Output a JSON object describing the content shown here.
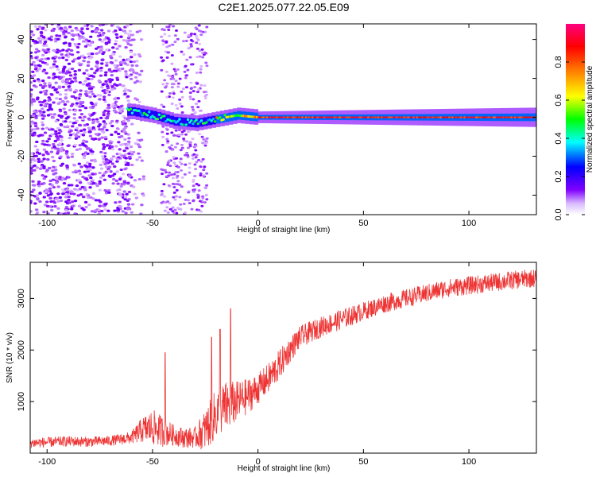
{
  "figure": {
    "title": "C2E1.2025.077.22.05.E09"
  },
  "chart_data": [
    {
      "type": "heatmap",
      "xlabel": "Height of straight line (km)",
      "ylabel": "Frequency (Hz)",
      "xlim": [
        -108,
        132
      ],
      "ylim": [
        -50,
        48
      ],
      "xticks": [
        -100,
        -50,
        0,
        50,
        100
      ],
      "yticks": [
        -40,
        -20,
        0,
        20,
        40
      ],
      "colorbar": {
        "label": "Normalized spectral amplitude",
        "range": [
          0.0,
          1.0
        ],
        "ticks": [
          "0.0",
          "0.2",
          "0.4",
          "0.6",
          "0.8"
        ],
        "colors": [
          "#ffffff",
          "#8000ff",
          "#0000ff",
          "#00ffff",
          "#00ff00",
          "#ffff00",
          "#ff8000",
          "#ff0000",
          "#ff0080"
        ]
      },
      "regions": [
        {
          "x_range": [
            -108,
            -60
          ],
          "freq_range": [
            -50,
            48
          ],
          "amplitude": 0.1,
          "pattern": "scattered noise"
        },
        {
          "x_range": [
            -60,
            -20
          ],
          "freq_range": [
            -10,
            6
          ],
          "amplitude": 0.5,
          "pattern": "concentrated band"
        },
        {
          "x_range": [
            -20,
            132
          ],
          "freq_center": 0,
          "amplitude": 0.85,
          "pattern": "narrow band at 0 Hz"
        }
      ],
      "band_center_trend": [
        {
          "x": -60,
          "y": 3
        },
        {
          "x": -50,
          "y": 1
        },
        {
          "x": -40,
          "y": -2
        },
        {
          "x": -30,
          "y": -3
        },
        {
          "x": -20,
          "y": -1
        },
        {
          "x": -10,
          "y": 1
        },
        {
          "x": 0,
          "y": 0
        },
        {
          "x": 132,
          "y": 0
        }
      ]
    },
    {
      "type": "line",
      "xlabel": "Height of straight line (km)",
      "ylabel": "SNR (10 * v/v)",
      "xlim": [
        -108,
        132
      ],
      "ylim": [
        0,
        3700
      ],
      "xticks": [
        -100,
        -50,
        0,
        50,
        100
      ],
      "yticks": [
        1000,
        2000,
        3000
      ],
      "series": [
        {
          "color": "#ee3333",
          "x": [
            -108,
            -100,
            -90,
            -80,
            -70,
            -60,
            -55,
            -50,
            -45,
            -40,
            -35,
            -30,
            -25,
            -20,
            -15,
            -10,
            -5,
            0,
            5,
            10,
            15,
            20,
            30,
            40,
            50,
            60,
            70,
            80,
            90,
            100,
            110,
            120,
            132
          ],
          "y": [
            200,
            210,
            230,
            220,
            240,
            300,
            450,
            500,
            420,
            350,
            300,
            300,
            450,
            750,
            900,
            1000,
            1100,
            1250,
            1450,
            1700,
            2000,
            2250,
            2450,
            2600,
            2750,
            2900,
            3000,
            3100,
            3200,
            3250,
            3300,
            3350,
            3400
          ],
          "spread": [
            100,
            100,
            100,
            100,
            100,
            120,
            250,
            350,
            300,
            200,
            200,
            200,
            400,
            500,
            500,
            400,
            350,
            300,
            300,
            300,
            250,
            220,
            200,
            200,
            180,
            180,
            180,
            180,
            180,
            180,
            180,
            180,
            180
          ]
        }
      ],
      "spikes": [
        {
          "x": -44,
          "y": 1950
        },
        {
          "x": -22,
          "y": 2250
        },
        {
          "x": -18,
          "y": 2400
        },
        {
          "x": -13,
          "y": 2800
        }
      ]
    }
  ]
}
